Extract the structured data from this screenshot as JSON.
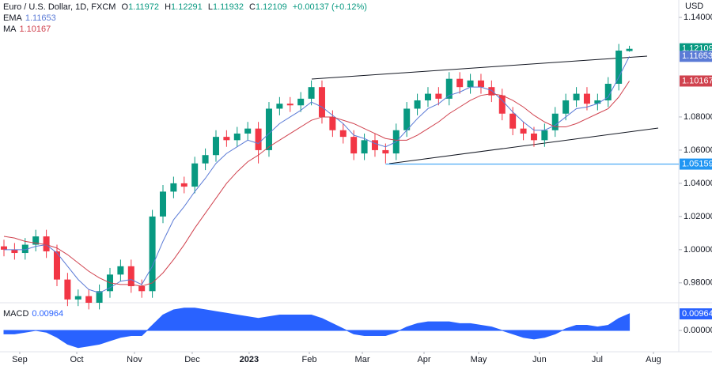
{
  "chart_data": [
    {
      "type": "candlestick",
      "title": "Euro / U.S. Dollar, 1D, FXCM",
      "currency": "USD",
      "ohlc_keys": [
        "O",
        "H",
        "L",
        "C"
      ],
      "change_label": "+0.00137 (+0.12%)",
      "up_color": "#089981",
      "down_color": "#f23645",
      "x": [
        0,
        1,
        2,
        3,
        4,
        5,
        6,
        7,
        8,
        9,
        10,
        11,
        12,
        13,
        14,
        15,
        16,
        17,
        18,
        19,
        20,
        21,
        22,
        23,
        24,
        25,
        26,
        27,
        28,
        29,
        30,
        31,
        32,
        33,
        34,
        35,
        36,
        37,
        38,
        39,
        40,
        41,
        42,
        43,
        44,
        45,
        46,
        47,
        48,
        49,
        50,
        51,
        52,
        53,
        54,
        55,
        56,
        57,
        58,
        59
      ],
      "open": [
        1.002,
        1.0,
        0.998,
        1.003,
        1.008,
        0.999,
        0.982,
        0.97,
        0.972,
        0.968,
        0.975,
        0.985,
        0.99,
        0.978,
        0.975,
        1.02,
        1.035,
        1.04,
        1.038,
        1.052,
        1.057,
        1.068,
        1.066,
        1.07,
        1.073,
        1.06,
        1.085,
        1.088,
        1.087,
        1.091,
        1.098,
        1.08,
        1.072,
        1.068,
        1.058,
        1.066,
        1.06,
        1.058,
        1.072,
        1.085,
        1.09,
        1.094,
        1.091,
        1.103,
        1.098,
        1.102,
        1.098,
        1.093,
        1.082,
        1.073,
        1.07,
        1.066,
        1.072,
        1.082,
        1.09,
        1.094,
        1.088,
        1.09,
        1.1,
        1.11972
      ],
      "high": [
        1.006,
        1.004,
        1.007,
        1.012,
        1.012,
        1.003,
        0.986,
        0.976,
        0.976,
        0.979,
        0.989,
        0.994,
        0.994,
        0.982,
        1.024,
        1.039,
        1.044,
        1.044,
        1.056,
        1.061,
        1.072,
        1.072,
        1.074,
        1.077,
        1.077,
        1.089,
        1.092,
        1.092,
        1.095,
        1.102,
        1.102,
        1.084,
        1.076,
        1.072,
        1.07,
        1.07,
        1.064,
        1.076,
        1.089,
        1.094,
        1.098,
        1.098,
        1.107,
        1.107,
        1.106,
        1.106,
        1.102,
        1.097,
        1.086,
        1.077,
        1.074,
        1.076,
        1.086,
        1.094,
        1.098,
        1.098,
        1.094,
        1.104,
        1.124,
        1.12291
      ],
      "low": [
        0.996,
        0.994,
        0.994,
        0.999,
        0.995,
        0.978,
        0.966,
        0.966,
        0.964,
        0.964,
        0.971,
        0.981,
        0.974,
        0.971,
        0.971,
        1.016,
        1.031,
        1.034,
        1.034,
        1.048,
        1.053,
        1.062,
        1.062,
        1.066,
        1.052,
        1.056,
        1.081,
        1.083,
        1.083,
        1.087,
        1.076,
        1.068,
        1.064,
        1.054,
        1.054,
        1.056,
        1.052,
        1.054,
        1.068,
        1.081,
        1.086,
        1.087,
        1.087,
        1.094,
        1.094,
        1.094,
        1.089,
        1.078,
        1.069,
        1.066,
        1.062,
        1.062,
        1.068,
        1.078,
        1.086,
        1.084,
        1.084,
        1.086,
        1.096,
        1.11932
      ],
      "close": [
        1.0,
        0.998,
        1.003,
        1.008,
        0.999,
        0.982,
        0.97,
        0.972,
        0.968,
        0.975,
        0.985,
        0.99,
        0.978,
        0.975,
        1.02,
        1.035,
        1.04,
        1.038,
        1.052,
        1.057,
        1.068,
        1.066,
        1.07,
        1.073,
        1.06,
        1.085,
        1.088,
        1.087,
        1.091,
        1.098,
        1.08,
        1.072,
        1.068,
        1.058,
        1.066,
        1.06,
        1.058,
        1.072,
        1.085,
        1.09,
        1.094,
        1.091,
        1.103,
        1.098,
        1.102,
        1.098,
        1.093,
        1.082,
        1.073,
        1.07,
        1.066,
        1.072,
        1.082,
        1.09,
        1.094,
        1.088,
        1.09,
        1.1,
        1.12,
        1.12109
      ],
      "series": [
        {
          "name": "EMA",
          "color": "#5b7bd6",
          "values": [
            1.0,
            1.0,
            1.0,
            1.002,
            1.003,
            0.998,
            0.99,
            0.982,
            0.976,
            0.974,
            0.977,
            0.981,
            0.982,
            0.979,
            0.99,
            1.005,
            1.018,
            1.026,
            1.035,
            1.043,
            1.052,
            1.058,
            1.062,
            1.066,
            1.064,
            1.07,
            1.076,
            1.08,
            1.084,
            1.089,
            1.086,
            1.081,
            1.076,
            1.069,
            1.067,
            1.064,
            1.062,
            1.065,
            1.072,
            1.079,
            1.085,
            1.088,
            1.093,
            1.095,
            1.098,
            1.098,
            1.096,
            1.09,
            1.083,
            1.077,
            1.072,
            1.072,
            1.075,
            1.08,
            1.085,
            1.086,
            1.088,
            1.092,
            1.104,
            1.11653
          ]
        },
        {
          "name": "MA",
          "color": "#d0424e",
          "values": [
            1.008,
            1.007,
            1.005,
            1.004,
            1.003,
            1.001,
            0.997,
            0.992,
            0.987,
            0.983,
            0.98,
            0.979,
            0.979,
            0.978,
            0.98,
            0.986,
            0.994,
            1.003,
            1.013,
            1.022,
            1.031,
            1.04,
            1.047,
            1.053,
            1.057,
            1.062,
            1.066,
            1.07,
            1.074,
            1.078,
            1.08,
            1.08,
            1.078,
            1.076,
            1.073,
            1.07,
            1.067,
            1.066,
            1.066,
            1.069,
            1.073,
            1.077,
            1.082,
            1.086,
            1.09,
            1.093,
            1.094,
            1.093,
            1.09,
            1.086,
            1.081,
            1.077,
            1.074,
            1.074,
            1.076,
            1.079,
            1.082,
            1.085,
            1.092,
            1.10167
          ]
        }
      ],
      "levels": [
        {
          "value": 1.05159,
          "color": "#2196f3"
        }
      ],
      "xlim": [
        -0.373,
        63.66
      ],
      "ylim": [
        0.968,
        1.1505
      ],
      "yticks": [
        {
          "value": 1.14,
          "label": "1.14000"
        },
        {
          "value": 1.08,
          "label": "1.08000"
        },
        {
          "value": 1.06,
          "label": "1.06000"
        },
        {
          "value": 1.04,
          "label": "1.04000"
        },
        {
          "value": 1.02,
          "label": "1.02000"
        },
        {
          "value": 1.0,
          "label": "1.00000"
        },
        {
          "value": 0.98,
          "label": "0.98000"
        }
      ],
      "xticks": [
        {
          "value": 1.49,
          "label": "Sep"
        },
        {
          "value": 6.87,
          "label": "Oct"
        },
        {
          "value": 12.31,
          "label": "Nov"
        },
        {
          "value": 17.76,
          "label": "Dec"
        },
        {
          "value": 23.13,
          "label": "2023"
        },
        {
          "value": 28.81,
          "label": "Feb"
        },
        {
          "value": 33.81,
          "label": "Mar"
        },
        {
          "value": 39.63,
          "label": "Apr"
        },
        {
          "value": 44.78,
          "label": "May"
        },
        {
          "value": 50.52,
          "label": "Jun"
        },
        {
          "value": 55.97,
          "label": "Jul"
        },
        {
          "value": 61.27,
          "label": "Aug"
        }
      ],
      "grid": false
    },
    {
      "type": "area",
      "series": [
        {
          "name": "MACD",
          "color": "#2962ff",
          "values": [
            -0.002,
            -0.002,
            -0.001,
            0.0,
            -0.001,
            -0.004,
            -0.008,
            -0.01,
            -0.009,
            -0.008,
            -0.006,
            -0.004,
            -0.003,
            -0.003,
            0.003,
            0.009,
            0.012,
            0.013,
            0.013,
            0.012,
            0.011,
            0.01,
            0.009,
            0.008,
            0.007,
            0.008,
            0.009,
            0.009,
            0.009,
            0.009,
            0.007,
            0.004,
            0.001,
            -0.002,
            -0.003,
            -0.003,
            -0.003,
            -0.001,
            0.002,
            0.004,
            0.005,
            0.005,
            0.005,
            0.004,
            0.004,
            0.003,
            0.002,
            0.0,
            -0.002,
            -0.004,
            -0.005,
            -0.004,
            -0.002,
            0.001,
            0.003,
            0.003,
            0.002,
            0.003,
            0.007,
            0.00964
          ]
        }
      ],
      "ylim": [
        -0.0124,
        0.0161
      ],
      "yticks": [
        {
          "value": 0,
          "label": "0.00000"
        }
      ]
    }
  ]
}
